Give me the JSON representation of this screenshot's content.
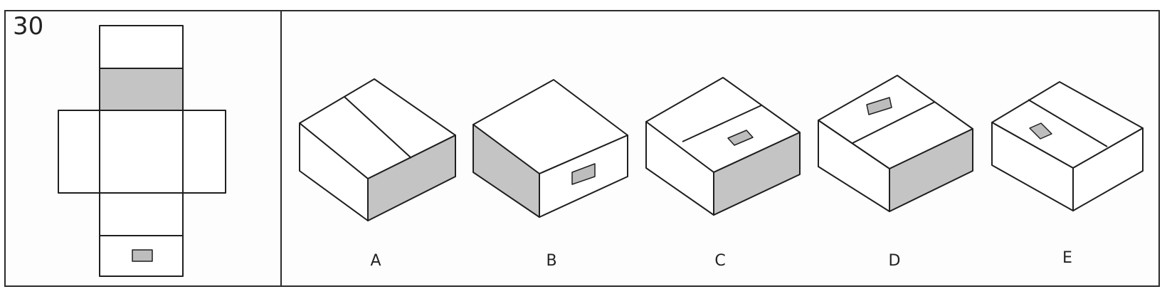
{
  "question": {
    "number": "30"
  },
  "colors": {
    "line": "#1f1f1f",
    "face_white": "#ffffff",
    "face_shaded": "#c4c4c4",
    "marker": "#bdbdbd"
  },
  "options": [
    {
      "label": "A"
    },
    {
      "label": "B"
    },
    {
      "label": "C"
    },
    {
      "label": "D"
    },
    {
      "label": "E"
    }
  ]
}
